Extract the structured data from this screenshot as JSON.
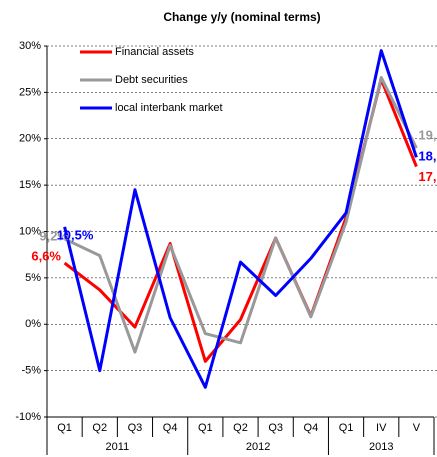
{
  "chart_data": {
    "type": "line",
    "title": "Change y/y (nominal terms)",
    "categories": [
      "Q1",
      "Q2",
      "Q3",
      "Q4",
      "Q1",
      "Q2",
      "Q3",
      "Q4",
      "Q1",
      "IV",
      "V"
    ],
    "category_groups": [
      {
        "label": "2011",
        "count": 4
      },
      {
        "label": "2012",
        "count": 4
      },
      {
        "label": "2013",
        "count": 3
      }
    ],
    "series": [
      {
        "name": "Financial assets",
        "color": "#ff0000",
        "values": [
          6.6,
          3.7,
          -0.3,
          8.7,
          -4.0,
          0.5,
          9.3,
          0.9,
          11.5,
          26.4,
          17
        ],
        "value_labels": [
          "6,6%",
          null,
          null,
          null,
          null,
          null,
          null,
          null,
          null,
          null,
          "17,"
        ]
      },
      {
        "name": "Debt securities",
        "color": "#999999",
        "values": [
          9.2,
          7.4,
          -3.0,
          8.5,
          -1.0,
          -2.0,
          9.3,
          0.8,
          11.0,
          26.6,
          19
        ],
        "value_labels": [
          "9,2%",
          null,
          null,
          null,
          null,
          null,
          null,
          null,
          null,
          null,
          "19,"
        ]
      },
      {
        "name": "local interbank market",
        "color": "#0000ff",
        "values": [
          10.5,
          -5.0,
          14.5,
          0.7,
          -6.8,
          6.7,
          3.1,
          7.1,
          12.0,
          29.5,
          18
        ],
        "value_labels": [
          "10,5%",
          null,
          null,
          null,
          null,
          null,
          null,
          null,
          null,
          null,
          "18,"
        ]
      }
    ],
    "ylim": [
      -10,
      30
    ],
    "yticks": [
      {
        "value": -10,
        "label": "-10%"
      },
      {
        "value": -5,
        "label": "-5%"
      },
      {
        "value": 0,
        "label": "0%"
      },
      {
        "value": 5,
        "label": "5%"
      },
      {
        "value": 10,
        "label": "10%"
      },
      {
        "value": 15,
        "label": "15%"
      },
      {
        "value": 20,
        "label": "20%"
      },
      {
        "value": 25,
        "label": "25%"
      },
      {
        "value": 30,
        "label": "30%"
      }
    ],
    "grid": true,
    "legend": "upper left"
  }
}
